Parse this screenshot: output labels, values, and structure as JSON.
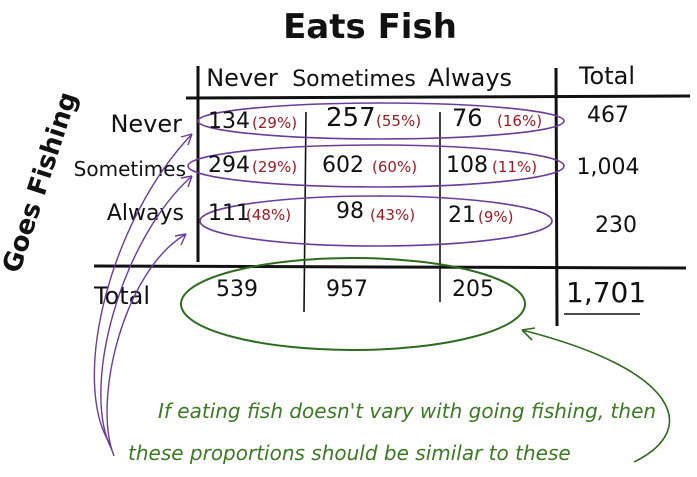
{
  "title": "Eats Fish",
  "row_axis_label": "Goes Fishing",
  "column_headers": [
    "Never",
    "Sometimes",
    "Always"
  ],
  "total_header": "Total",
  "row_labels": [
    "Never",
    "Sometimes",
    "Always"
  ],
  "total_row_label": "Total",
  "cells": [
    [
      {
        "count": "134",
        "pct": "(29%)"
      },
      {
        "count": "257",
        "pct": "(55%)"
      },
      {
        "count": "76",
        "pct": "(16%)"
      }
    ],
    [
      {
        "count": "294",
        "pct": "(29%)"
      },
      {
        "count": "602",
        "pct": "(60%)"
      },
      {
        "count": "108",
        "pct": "(11%)"
      }
    ],
    [
      {
        "count": "111",
        "pct": "(48%)"
      },
      {
        "count": "98",
        "pct": "(43%)"
      },
      {
        "count": "21",
        "pct": "(9%)"
      }
    ]
  ],
  "row_totals": [
    "467",
    "1,004",
    "230"
  ],
  "column_totals": [
    "539",
    "957",
    "205"
  ],
  "grand_total": "1,701",
  "annotation_line1": "If eating fish doesn't vary with going fishing, then",
  "annotation_line2": "these proportions should be similar to these",
  "colors": {
    "ink": "#111111",
    "percent": "#9e1b22",
    "row_ellipse": "#6a3d9a",
    "total_ellipse": "#2f6b1f",
    "annotation": "#3b7a22"
  }
}
